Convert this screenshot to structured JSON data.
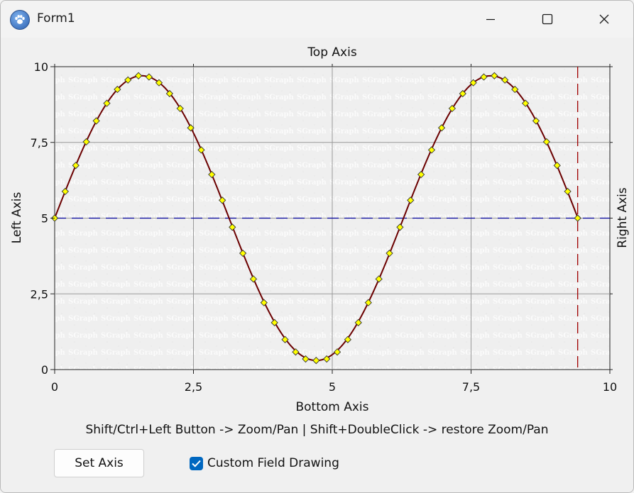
{
  "window": {
    "title": "Form1",
    "app_icon": "paw-icon",
    "controls": [
      "minimize-icon",
      "maximize-icon",
      "close-icon"
    ]
  },
  "chart_data": {
    "type": "line",
    "title": "Top Axis",
    "xlabel": "Bottom Axis",
    "ylabel": "Left Axis",
    "y2label": "Right Axis",
    "xlim": [
      0,
      10
    ],
    "ylim": [
      0,
      10
    ],
    "x_ticks": [
      "0",
      "2,5",
      "5",
      "7,5",
      "10"
    ],
    "y_ticks": [
      "0",
      "2,5",
      "5",
      "7,5",
      "10"
    ],
    "grid": true,
    "series": [
      {
        "line_color": "#6b0000",
        "marker": "diamond",
        "marker_color": "#ffff00",
        "function": "5 + 4.7*sin(x)",
        "x": [
          0,
          0.19,
          0.38,
          0.57,
          0.75,
          0.94,
          1.13,
          1.32,
          1.51,
          1.7,
          1.88,
          2.07,
          2.26,
          2.45,
          2.64,
          2.83,
          3.02,
          3.2,
          3.39,
          3.58,
          3.77,
          3.96,
          4.15,
          4.34,
          4.52,
          4.71,
          4.9,
          5.09,
          5.28,
          5.47,
          5.65,
          5.84,
          6.03,
          6.22,
          6.41,
          6.6,
          6.79,
          6.97,
          7.16,
          7.35,
          7.54,
          7.73,
          7.92,
          8.11,
          8.29,
          8.48,
          8.67,
          8.86,
          9.05,
          9.24,
          9.42
        ],
        "y": [
          5.0,
          5.88,
          6.74,
          7.52,
          8.21,
          8.79,
          9.25,
          9.56,
          9.7,
          9.66,
          9.47,
          9.11,
          8.62,
          7.98,
          7.25,
          6.44,
          5.59,
          4.7,
          3.84,
          2.99,
          2.21,
          1.55,
          0.99,
          0.58,
          0.35,
          0.3,
          0.35,
          0.58,
          0.99,
          1.55,
          2.21,
          2.99,
          3.84,
          4.7,
          5.59,
          6.44,
          7.25,
          7.98,
          8.62,
          9.11,
          9.47,
          9.66,
          9.7,
          9.56,
          9.25,
          8.79,
          8.21,
          7.52,
          6.74,
          5.88,
          5.0
        ]
      }
    ],
    "reference_lines": [
      {
        "orientation": "horizontal",
        "value": 5,
        "color": "#000099",
        "style": "dashed"
      },
      {
        "orientation": "vertical",
        "value": 9.42,
        "color": "#a00000",
        "style": "dashed"
      }
    ],
    "background": "textured light gray"
  },
  "hint": "Shift/Ctrl+Left Button -> Zoom/Pan | Shift+DoubleClick  -> restore Zoom/Pan",
  "buttons": {
    "set_axis": "Set Axis"
  },
  "checkbox": {
    "label": "Custom Field Drawing",
    "checked": true,
    "accent": "#0067c0"
  }
}
